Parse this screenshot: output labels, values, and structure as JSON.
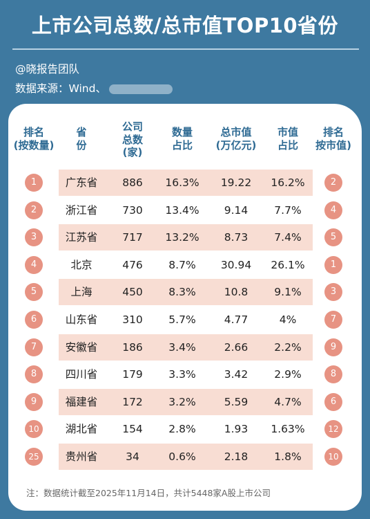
{
  "header": {
    "title": "上市公司总数/总市值TOP10省份",
    "author": "@晓报告团队",
    "source_label": "数据来源：Wind、"
  },
  "table": {
    "columns": [
      "排名\n(按数量)",
      "省\n份",
      "公司\n总数\n(家)",
      "数量\n占比",
      "总市值\n(万亿元)",
      "市值\n占比",
      "排名\n按市值)"
    ],
    "rows": [
      {
        "rank_count": "1",
        "province": "广东省",
        "companies": "886",
        "count_share": "16.3%",
        "market_cap": "19.22",
        "cap_share": "16.2%",
        "rank_cap": "2"
      },
      {
        "rank_count": "2",
        "province": "浙江省",
        "companies": "730",
        "count_share": "13.4%",
        "market_cap": "9.14",
        "cap_share": "7.7%",
        "rank_cap": "4"
      },
      {
        "rank_count": "3",
        "province": "江苏省",
        "companies": "717",
        "count_share": "13.2%",
        "market_cap": "8.73",
        "cap_share": "7.4%",
        "rank_cap": "5"
      },
      {
        "rank_count": "4",
        "province": "北京",
        "companies": "476",
        "count_share": "8.7%",
        "market_cap": "30.94",
        "cap_share": "26.1%",
        "rank_cap": "1"
      },
      {
        "rank_count": "5",
        "province": "上海",
        "companies": "450",
        "count_share": "8.3%",
        "market_cap": "10.8",
        "cap_share": "9.1%",
        "rank_cap": "3"
      },
      {
        "rank_count": "6",
        "province": "山东省",
        "companies": "310",
        "count_share": "5.7%",
        "market_cap": "4.77",
        "cap_share": "4%",
        "rank_cap": "7"
      },
      {
        "rank_count": "7",
        "province": "安徽省",
        "companies": "186",
        "count_share": "3.4%",
        "market_cap": "2.66",
        "cap_share": "2.2%",
        "rank_cap": "9"
      },
      {
        "rank_count": "8",
        "province": "四川省",
        "companies": "179",
        "count_share": "3.3%",
        "market_cap": "3.42",
        "cap_share": "2.9%",
        "rank_cap": "8"
      },
      {
        "rank_count": "9",
        "province": "福建省",
        "companies": "172",
        "count_share": "3.2%",
        "market_cap": "5.59",
        "cap_share": "4.7%",
        "rank_cap": "6"
      },
      {
        "rank_count": "10",
        "province": "湖北省",
        "companies": "154",
        "count_share": "2.8%",
        "market_cap": "1.93",
        "cap_share": "1.63%",
        "rank_cap": "12"
      },
      {
        "rank_count": "25",
        "province": "贵州省",
        "companies": "34",
        "count_share": "0.6%",
        "market_cap": "2.18",
        "cap_share": "1.8%",
        "rank_cap": "10"
      }
    ]
  },
  "footnote": "注：数据统计截至2025年11月14日，共计5448家A股上市公司",
  "colors": {
    "background": "#3e79a0",
    "header_text": "#2e6a93",
    "row_band": "#f8ddd3",
    "badge": "#e79383"
  }
}
